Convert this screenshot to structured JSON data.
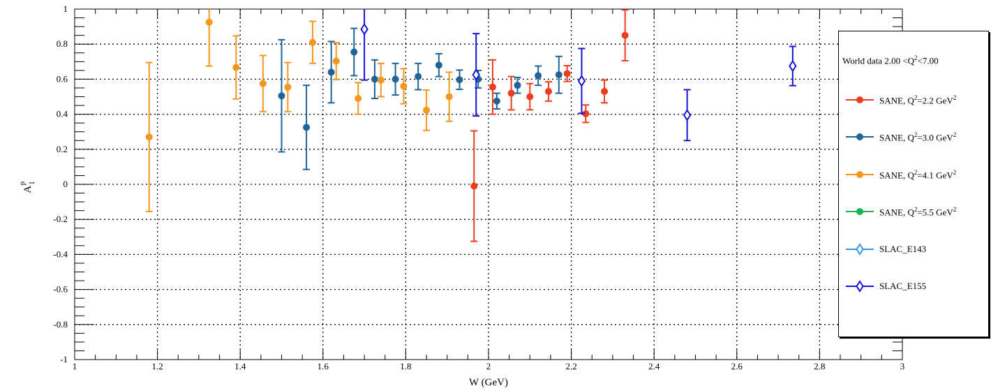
{
  "chart_data": {
    "type": "scatter",
    "xlabel": "W (GeV)",
    "ylabel": "A",
    "ylabel_sup": "p",
    "ylabel_sub": "1",
    "xlim": [
      1,
      3
    ],
    "ylim": [
      -1,
      1
    ],
    "x_ticks": [
      1,
      1.2,
      1.4,
      1.6,
      1.8,
      2,
      2.2,
      2.4,
      2.6,
      2.8,
      3
    ],
    "x_tick_labels": [
      "1",
      "1.2",
      "1.4",
      "1.6",
      "1.8",
      "2",
      "2.2",
      "2.4",
      "2.6",
      "2.8",
      "3"
    ],
    "y_ticks": [
      -1,
      -0.8,
      -0.6,
      -0.4,
      -0.2,
      0,
      0.2,
      0.4,
      0.6,
      0.8,
      1
    ],
    "y_tick_labels": [
      "-1",
      "-0.8",
      "-0.6",
      "-0.4",
      "-0.2",
      "0",
      "0.2",
      "0.4",
      "0.6",
      "0.8",
      "1"
    ],
    "grid": true,
    "legend_position": "right",
    "legend_header": "World data 2.00 <Q",
    "legend_header_sup": "2",
    "legend_header_tail": "<7.00",
    "series": [
      {
        "name": "SANE, Q",
        "name_sup": "2",
        "name_tail": "=2.2 GeV",
        "name_tail_sup": "2",
        "marker": "circle",
        "color": "#ee3c1e",
        "points": [
          {
            "x": 1.965,
            "y": -0.01,
            "err": 0.315
          },
          {
            "x": 2.01,
            "y": 0.555,
            "err": 0.155
          },
          {
            "x": 2.055,
            "y": 0.52,
            "err": 0.095
          },
          {
            "x": 2.1,
            "y": 0.5,
            "err": 0.075
          },
          {
            "x": 2.145,
            "y": 0.53,
            "err": 0.055
          },
          {
            "x": 2.19,
            "y": 0.632,
            "err": 0.045
          },
          {
            "x": 2.235,
            "y": 0.403,
            "err": 0.05
          },
          {
            "x": 2.28,
            "y": 0.53,
            "err": 0.065
          },
          {
            "x": 2.33,
            "y": 0.85,
            "err": 0.145
          }
        ]
      },
      {
        "name": "SANE, Q",
        "name_sup": "2",
        "name_tail": "=3.0 GeV",
        "name_tail_sup": "2",
        "marker": "circle",
        "color": "#1f6499",
        "points": [
          {
            "x": 1.5,
            "y": 0.505,
            "err": 0.32
          },
          {
            "x": 1.56,
            "y": 0.325,
            "err": 0.24
          },
          {
            "x": 1.62,
            "y": 0.64,
            "err": 0.175
          },
          {
            "x": 1.675,
            "y": 0.755,
            "err": 0.135
          },
          {
            "x": 1.725,
            "y": 0.6,
            "err": 0.11
          },
          {
            "x": 1.775,
            "y": 0.6,
            "err": 0.09
          },
          {
            "x": 1.83,
            "y": 0.615,
            "err": 0.075
          },
          {
            "x": 1.88,
            "y": 0.68,
            "err": 0.065
          },
          {
            "x": 1.93,
            "y": 0.597,
            "err": 0.055
          },
          {
            "x": 1.975,
            "y": 0.6,
            "err": 0.05
          },
          {
            "x": 2.02,
            "y": 0.475,
            "err": 0.045
          },
          {
            "x": 2.07,
            "y": 0.565,
            "err": 0.045
          },
          {
            "x": 2.12,
            "y": 0.62,
            "err": 0.055
          },
          {
            "x": 2.17,
            "y": 0.625,
            "err": 0.105
          }
        ]
      },
      {
        "name": "SANE, Q",
        "name_sup": "2",
        "name_tail": "=4.1 GeV",
        "name_tail_sup": "2",
        "marker": "circle",
        "color": "#f5961e",
        "points": [
          {
            "x": 1.18,
            "y": 0.27,
            "err": 0.425
          },
          {
            "x": 1.325,
            "y": 0.925,
            "err": 0.25
          },
          {
            "x": 1.39,
            "y": 0.667,
            "err": 0.18
          },
          {
            "x": 1.455,
            "y": 0.575,
            "err": 0.16
          },
          {
            "x": 1.515,
            "y": 0.555,
            "err": 0.14
          },
          {
            "x": 1.575,
            "y": 0.81,
            "err": 0.12
          },
          {
            "x": 1.632,
            "y": 0.703,
            "err": 0.105
          },
          {
            "x": 1.685,
            "y": 0.49,
            "err": 0.09
          },
          {
            "x": 1.74,
            "y": 0.595,
            "err": 0.095
          },
          {
            "x": 1.795,
            "y": 0.56,
            "err": 0.1
          },
          {
            "x": 1.85,
            "y": 0.423,
            "err": 0.115
          },
          {
            "x": 1.905,
            "y": 0.5,
            "err": 0.14
          }
        ]
      },
      {
        "name": "SANE, Q",
        "name_sup": "2",
        "name_tail": "=5.5 GeV",
        "name_tail_sup": "2",
        "marker": "circle",
        "color": "#14b450",
        "points": []
      },
      {
        "name": "SLAC_E143",
        "name_sup": "",
        "name_tail": "",
        "name_tail_sup": "",
        "marker": "open-diamond",
        "color": "#3c96ee",
        "points": []
      },
      {
        "name": "SLAC_E155",
        "name_sup": "",
        "name_tail": "",
        "name_tail_sup": "",
        "marker": "open-diamond",
        "color": "#1414d2",
        "points": [
          {
            "x": 1.7,
            "y": 0.885,
            "err": 0.29
          },
          {
            "x": 1.97,
            "y": 0.625,
            "err": 0.235
          },
          {
            "x": 2.225,
            "y": 0.59,
            "err": 0.185
          },
          {
            "x": 2.48,
            "y": 0.395,
            "err": 0.145
          },
          {
            "x": 2.735,
            "y": 0.675,
            "err": 0.112
          }
        ]
      }
    ]
  }
}
